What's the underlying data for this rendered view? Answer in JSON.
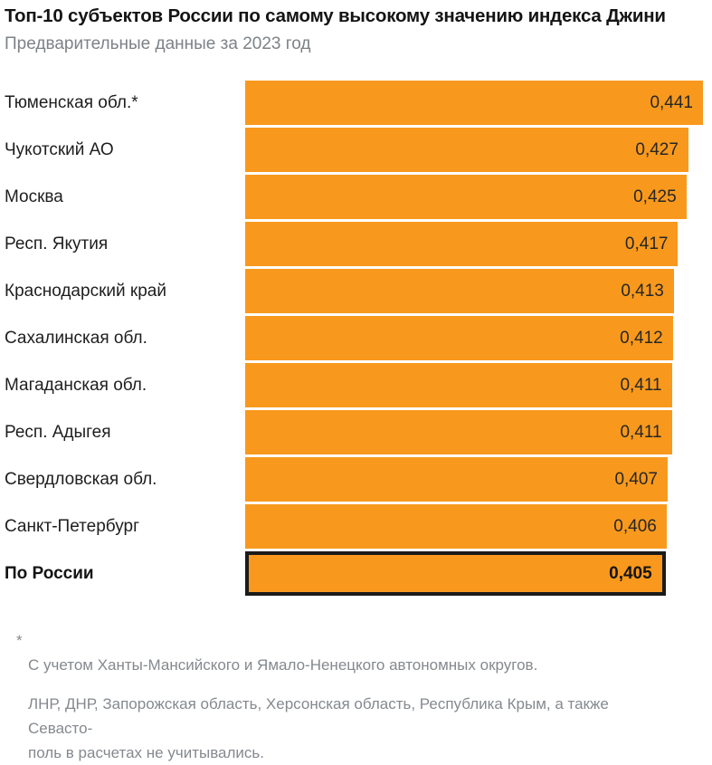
{
  "header": {
    "title": "Топ-10 субъектов России по самому высокому значению индекса Джини",
    "subtitle": "Предварительные данные за 2023 год"
  },
  "chart_data": {
    "type": "bar",
    "orientation": "horizontal",
    "title": "Топ-10 субъектов России по самому высокому значению индекса Джини",
    "subtitle": "Предварительные данные за 2023 год",
    "xlabel": "",
    "ylabel": "",
    "value_range": [
      0,
      0.441
    ],
    "grid": false,
    "legend": "none",
    "bar_color": "#f8991d",
    "highlight_border_color": "#1b1b1b",
    "categories": [
      "Тюменская обл.*",
      "Чукотский АО",
      "Москва",
      "Респ. Якутия",
      "Краснодарский край",
      "Сахалинская обл.",
      "Магаданская обл.",
      "Респ. Адыгея",
      "Свердловская обл.",
      "Санкт-Петербург",
      "По России"
    ],
    "rows": [
      {
        "label": "Тюменская обл.*",
        "value": 0.441,
        "value_label": "0,441",
        "highlight": false
      },
      {
        "label": "Чукотский АО",
        "value": 0.427,
        "value_label": "0,427",
        "highlight": false
      },
      {
        "label": "Москва",
        "value": 0.425,
        "value_label": "0,425",
        "highlight": false
      },
      {
        "label": "Респ. Якутия",
        "value": 0.417,
        "value_label": "0,417",
        "highlight": false
      },
      {
        "label": "Краснодарский край",
        "value": 0.413,
        "value_label": "0,413",
        "highlight": false
      },
      {
        "label": "Сахалинская обл.",
        "value": 0.412,
        "value_label": "0,412",
        "highlight": false
      },
      {
        "label": "Магаданская обл.",
        "value": 0.411,
        "value_label": "0,411",
        "highlight": false
      },
      {
        "label": "Респ. Адыгея",
        "value": 0.411,
        "value_label": "0,411",
        "highlight": false
      },
      {
        "label": "Свердловская обл.",
        "value": 0.407,
        "value_label": "0,407",
        "highlight": false
      },
      {
        "label": "Санкт-Петербург",
        "value": 0.406,
        "value_label": "0,406",
        "highlight": false
      },
      {
        "label": "По России",
        "value": 0.405,
        "value_label": "0,405",
        "highlight": true
      }
    ]
  },
  "footnotes": [
    {
      "marker": "*",
      "text": "С учетом Ханты-Мансийского и Ямало-Ненецкого автономных округов."
    },
    {
      "marker": "",
      "text": "ЛНР, ДНР, Запорожская область, Херсонская область, Республика Крым, а также Севасто-\nполь в расчетах не учитывались."
    }
  ]
}
